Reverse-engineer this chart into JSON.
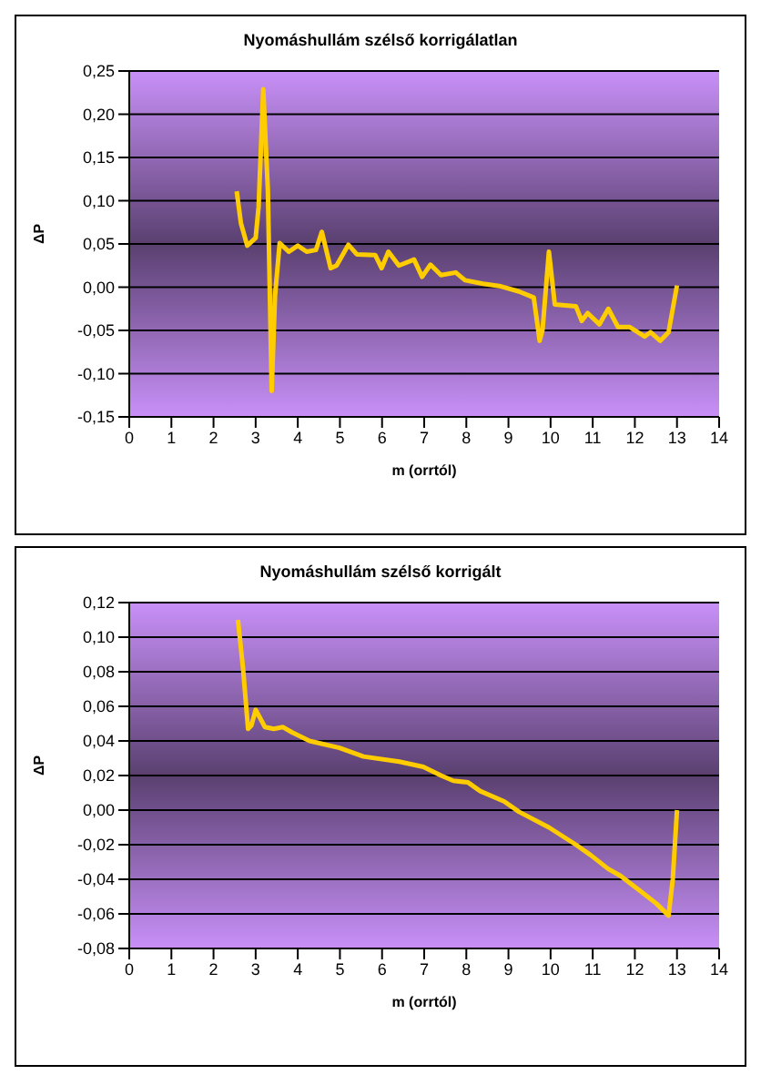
{
  "chart_data": [
    {
      "type": "line",
      "title": "Nyomáshullám szélső korrigálatlan",
      "xlabel": "m (orrtól)",
      "ylabel": "ΔP",
      "grid": "y",
      "legend": false,
      "marker": "none",
      "xlim": [
        0,
        14
      ],
      "xticks": [
        0,
        1,
        2,
        3,
        4,
        5,
        6,
        7,
        8,
        9,
        10,
        11,
        12,
        13,
        14
      ],
      "ylim": [
        -0.15,
        0.25
      ],
      "yticks": [
        {
          "value": -0.15,
          "label": "-0,15"
        },
        {
          "value": -0.1,
          "label": "-0,10"
        },
        {
          "value": -0.05,
          "label": "-0,05"
        },
        {
          "value": 0,
          "label": "0,00"
        },
        {
          "value": 0.05,
          "label": "0,05"
        },
        {
          "value": 0.1,
          "label": "0,10"
        },
        {
          "value": 0.15,
          "label": "0,15"
        },
        {
          "value": 0.2,
          "label": "0,20"
        },
        {
          "value": 0.25,
          "label": "0,25"
        }
      ],
      "series": [
        {
          "color": "#ffcc00",
          "x": [
            2.55,
            2.65,
            2.8,
            3.0,
            3.07,
            3.18,
            3.29,
            3.38,
            3.46,
            3.57,
            3.79,
            4.0,
            4.21,
            4.43,
            4.57,
            4.78,
            4.92,
            5.2,
            5.4,
            5.84,
            5.99,
            6.15,
            6.4,
            6.76,
            6.95,
            7.15,
            7.4,
            7.75,
            7.97,
            8.4,
            8.82,
            9.25,
            9.6,
            9.74,
            9.81,
            9.96,
            10.1,
            10.6,
            10.74,
            10.88,
            11.16,
            11.37,
            11.6,
            11.87,
            12.23,
            12.37,
            12.6,
            12.8,
            13.0
          ],
          "values": [
            0.111,
            0.074,
            0.048,
            0.057,
            0.093,
            0.229,
            0.112,
            -0.12,
            -0.01,
            0.051,
            0.041,
            0.048,
            0.041,
            0.043,
            0.064,
            0.022,
            0.025,
            0.049,
            0.038,
            0.037,
            0.022,
            0.041,
            0.025,
            0.032,
            0.012,
            0.026,
            0.014,
            0.017,
            0.008,
            0.004,
            0.001,
            -0.005,
            -0.012,
            -0.062,
            -0.049,
            0.041,
            -0.02,
            -0.022,
            -0.039,
            -0.03,
            -0.043,
            -0.025,
            -0.046,
            -0.046,
            -0.057,
            -0.052,
            -0.062,
            -0.052,
            0.002
          ]
        }
      ]
    },
    {
      "type": "line",
      "title": "Nyomáshullám szélső korrigált",
      "xlabel": "m (orrtól)",
      "ylabel": "ΔP",
      "grid": "y",
      "legend": false,
      "marker": "none",
      "xlim": [
        0,
        14
      ],
      "xticks": [
        0,
        1,
        2,
        3,
        4,
        5,
        6,
        7,
        8,
        9,
        10,
        11,
        12,
        13,
        14
      ],
      "ylim": [
        -0.08,
        0.12
      ],
      "yticks": [
        {
          "value": -0.08,
          "label": "-0,08"
        },
        {
          "value": -0.06,
          "label": "-0,06"
        },
        {
          "value": -0.04,
          "label": "-0,04"
        },
        {
          "value": -0.02,
          "label": "-0,02"
        },
        {
          "value": 0,
          "label": "0,00"
        },
        {
          "value": 0.02,
          "label": "0,02"
        },
        {
          "value": 0.04,
          "label": "0,04"
        },
        {
          "value": 0.06,
          "label": "0,06"
        },
        {
          "value": 0.08,
          "label": "0,08"
        },
        {
          "value": 0.1,
          "label": "0,10"
        },
        {
          "value": 0.12,
          "label": "0,12"
        }
      ],
      "series": [
        {
          "color": "#ffcc00",
          "x": [
            2.58,
            2.7,
            2.82,
            2.9,
            3.0,
            3.22,
            3.43,
            3.65,
            3.86,
            4.28,
            4.99,
            5.56,
            6.41,
            6.98,
            7.4,
            7.69,
            8.04,
            8.33,
            8.9,
            9.25,
            9.96,
            10.6,
            10.95,
            11.37,
            11.66,
            12.09,
            12.51,
            12.8,
            12.9,
            13.0
          ],
          "values": [
            0.11,
            0.082,
            0.047,
            0.049,
            0.058,
            0.048,
            0.047,
            0.048,
            0.045,
            0.04,
            0.036,
            0.031,
            0.028,
            0.025,
            0.02,
            0.017,
            0.016,
            0.011,
            0.005,
            -0.001,
            -0.01,
            -0.02,
            -0.026,
            -0.034,
            -0.038,
            -0.046,
            -0.054,
            -0.061,
            -0.04,
            0.0
          ]
        }
      ]
    }
  ]
}
